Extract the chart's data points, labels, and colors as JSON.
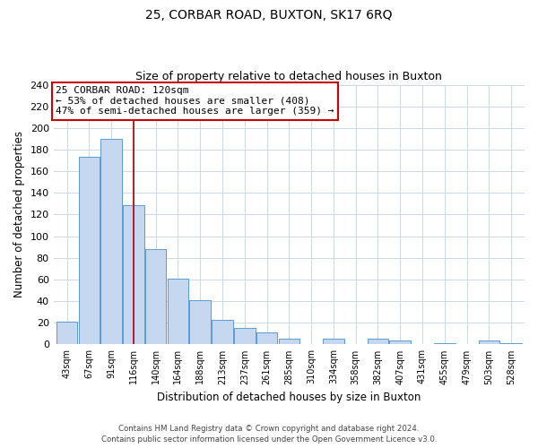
{
  "title": "25, CORBAR ROAD, BUXTON, SK17 6RQ",
  "subtitle": "Size of property relative to detached houses in Buxton",
  "xlabel": "Distribution of detached houses by size in Buxton",
  "ylabel": "Number of detached properties",
  "categories": [
    "43sqm",
    "67sqm",
    "91sqm",
    "116sqm",
    "140sqm",
    "164sqm",
    "188sqm",
    "213sqm",
    "237sqm",
    "261sqm",
    "285sqm",
    "310sqm",
    "334sqm",
    "358sqm",
    "382sqm",
    "407sqm",
    "431sqm",
    "455sqm",
    "479sqm",
    "503sqm",
    "528sqm"
  ],
  "values": [
    21,
    173,
    190,
    129,
    88,
    61,
    41,
    23,
    15,
    11,
    5,
    0,
    5,
    0,
    5,
    4,
    0,
    1,
    0,
    4,
    1
  ],
  "bar_color": "#c5d8f0",
  "bar_edge_color": "#5b9bd5",
  "highlight_index": 3,
  "highlight_line_color": "#aa0000",
  "annotation_text": "25 CORBAR ROAD: 120sqm\n← 53% of detached houses are smaller (408)\n47% of semi-detached houses are larger (359) →",
  "annotation_box_color": "#ffffff",
  "annotation_box_edge": "#cc0000",
  "ylim": [
    0,
    240
  ],
  "yticks": [
    0,
    20,
    40,
    60,
    80,
    100,
    120,
    140,
    160,
    180,
    200,
    220,
    240
  ],
  "footer_line1": "Contains HM Land Registry data © Crown copyright and database right 2024.",
  "footer_line2": "Contains public sector information licensed under the Open Government Licence v3.0.",
  "bg_color": "#ffffff",
  "grid_color": "#c8d8e8"
}
